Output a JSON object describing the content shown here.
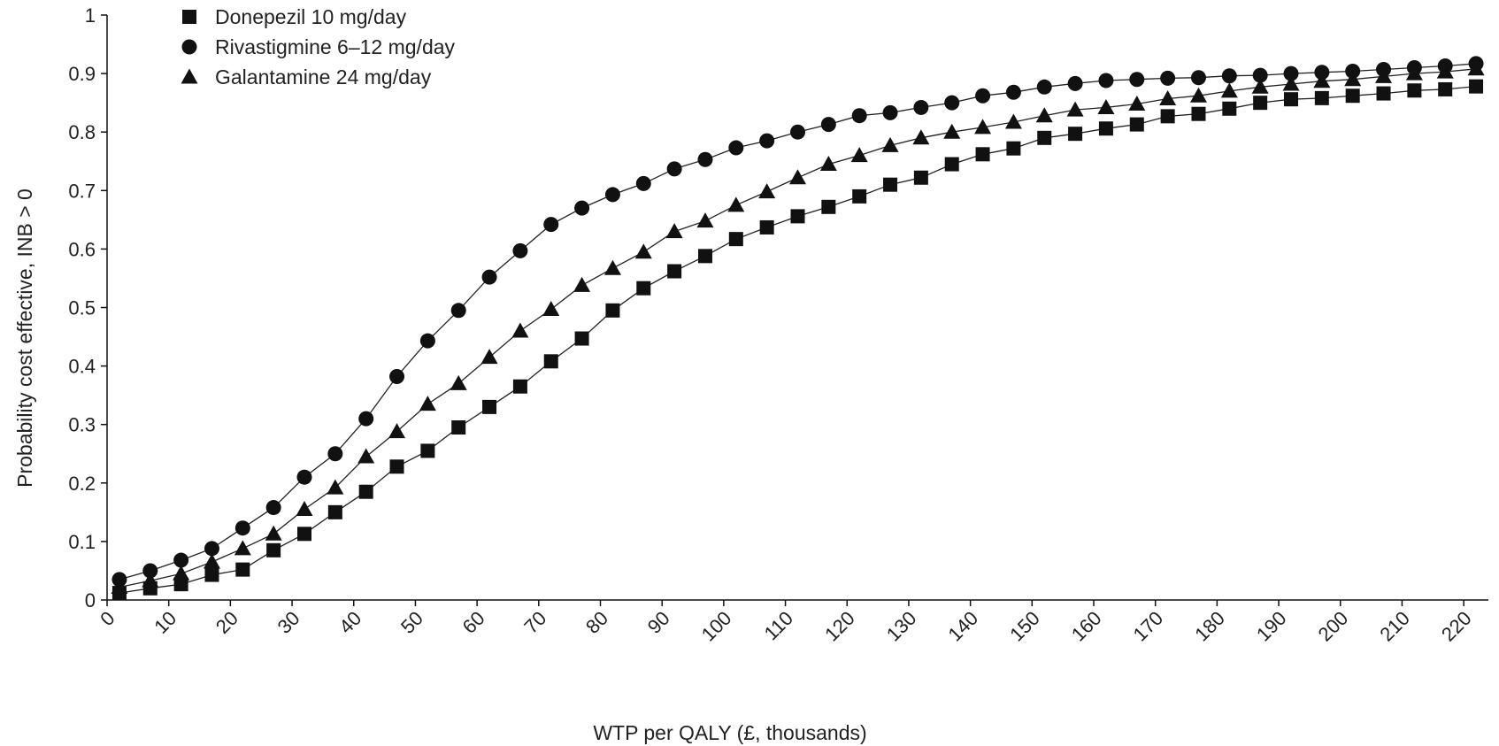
{
  "chart_data": {
    "type": "line",
    "xlabel": "WTP per QALY (£, thousands)",
    "ylabel": "Probability cost effective, INB > 0",
    "xlim": [
      0,
      224
    ],
    "ylim": [
      0,
      1
    ],
    "x_ticks": [
      "0",
      "10",
      "20",
      "30",
      "40",
      "50",
      "60",
      "70",
      "80",
      "90",
      "100",
      "110",
      "120",
      "130",
      "140",
      "150",
      "160",
      "170",
      "180",
      "190",
      "200",
      "210",
      "220"
    ],
    "y_ticks": [
      "0",
      "0.1",
      "0.2",
      "0.3",
      "0.4",
      "0.5",
      "0.6",
      "0.7",
      "0.8",
      "0.9",
      "1"
    ],
    "legend_position": "top-left",
    "grid": false,
    "x": [
      2,
      7,
      12,
      17,
      22,
      27,
      32,
      37,
      42,
      47,
      52,
      57,
      62,
      67,
      72,
      77,
      82,
      87,
      92,
      97,
      102,
      107,
      112,
      117,
      122,
      127,
      132,
      137,
      142,
      147,
      152,
      157,
      162,
      167,
      172,
      177,
      182,
      187,
      192,
      197,
      202,
      207,
      212,
      217,
      222
    ],
    "series": [
      {
        "name": "Donepezil 10 mg/day",
        "marker": "square",
        "values": [
          0.012,
          0.02,
          0.027,
          0.043,
          0.052,
          0.085,
          0.113,
          0.15,
          0.185,
          0.228,
          0.255,
          0.295,
          0.33,
          0.365,
          0.408,
          0.447,
          0.495,
          0.533,
          0.562,
          0.588,
          0.617,
          0.637,
          0.656,
          0.672,
          0.69,
          0.71,
          0.722,
          0.745,
          0.762,
          0.772,
          0.79,
          0.797,
          0.806,
          0.813,
          0.827,
          0.831,
          0.84,
          0.85,
          0.856,
          0.858,
          0.862,
          0.866,
          0.871,
          0.873,
          0.878
        ]
      },
      {
        "name": "Rivastigmine 6–12 mg/day",
        "marker": "circle",
        "values": [
          0.035,
          0.05,
          0.068,
          0.088,
          0.123,
          0.158,
          0.21,
          0.25,
          0.31,
          0.382,
          0.443,
          0.495,
          0.552,
          0.597,
          0.642,
          0.67,
          0.693,
          0.712,
          0.737,
          0.753,
          0.773,
          0.785,
          0.8,
          0.813,
          0.828,
          0.833,
          0.842,
          0.85,
          0.862,
          0.868,
          0.877,
          0.883,
          0.888,
          0.89,
          0.892,
          0.893,
          0.896,
          0.897,
          0.9,
          0.902,
          0.904,
          0.907,
          0.91,
          0.913,
          0.917
        ]
      },
      {
        "name": "Galantamine 24 mg/day",
        "marker": "triangle",
        "values": [
          0.022,
          0.033,
          0.045,
          0.065,
          0.088,
          0.113,
          0.155,
          0.192,
          0.245,
          0.288,
          0.335,
          0.37,
          0.415,
          0.46,
          0.497,
          0.538,
          0.567,
          0.595,
          0.63,
          0.648,
          0.675,
          0.698,
          0.722,
          0.745,
          0.76,
          0.777,
          0.79,
          0.8,
          0.808,
          0.817,
          0.828,
          0.838,
          0.842,
          0.848,
          0.857,
          0.862,
          0.87,
          0.877,
          0.882,
          0.887,
          0.89,
          0.895,
          0.9,
          0.903,
          0.908
        ]
      }
    ]
  }
}
